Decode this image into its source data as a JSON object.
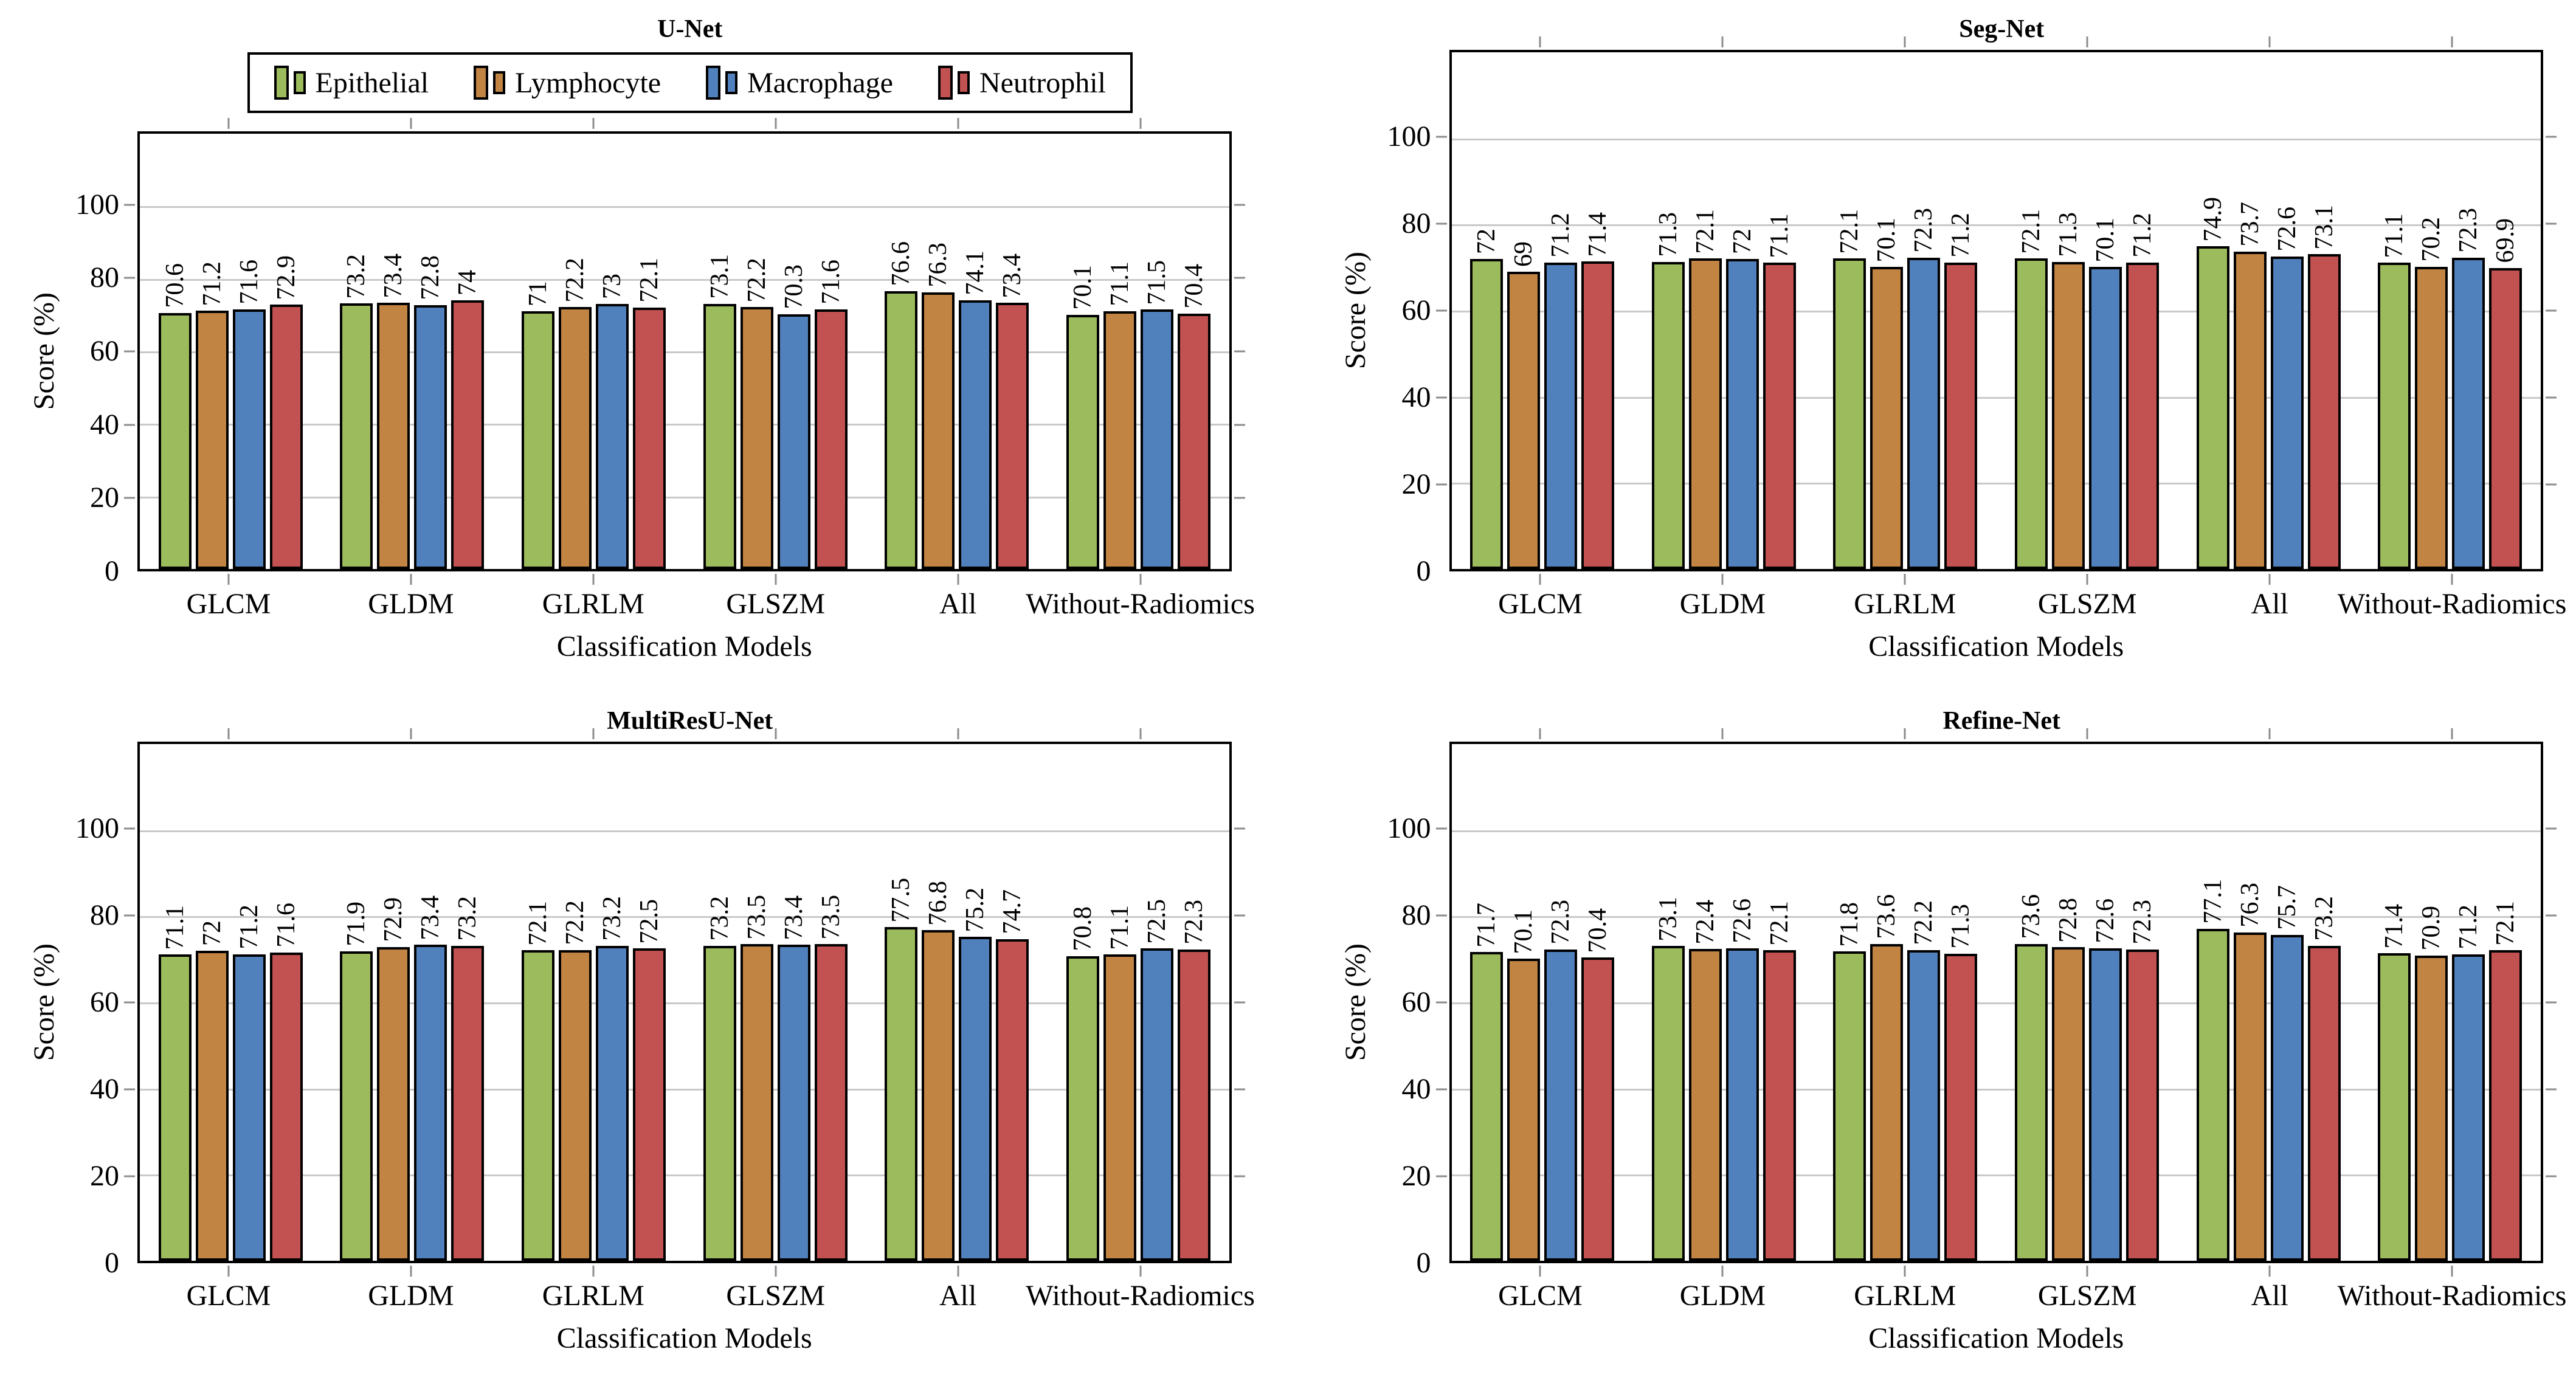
{
  "figure": {
    "layout": "2x2-grid",
    "grid_color": "#c9c9c9",
    "tick_color": "#8c8c8c",
    "bar_border_color": "#000000",
    "legend": {
      "entries": [
        "Epithelial",
        "Lymphocyte",
        "Macrophage",
        "Neutrophil"
      ],
      "colors": [
        "#9cbb5c",
        "#c28442",
        "#5181bc",
        "#c25152"
      ],
      "position": "above-first-panel"
    }
  },
  "chart_data": [
    {
      "type": "bar",
      "title": "U-Net",
      "xlabel": "Classification Models",
      "ylabel": "Score (%)",
      "ylim": [
        0,
        120
      ],
      "yticks": [
        0,
        20,
        40,
        60,
        80,
        100
      ],
      "grid": "horizontal",
      "legend_visible": true,
      "categories": [
        "GLCM",
        "GLDM",
        "GLRLM",
        "GLSZM",
        "All",
        "Without-Radiomics"
      ],
      "series": [
        {
          "name": "Epithelial",
          "color": "#9cbb5c",
          "values": [
            70.6,
            73.2,
            71,
            73.1,
            76.6,
            70.1
          ]
        },
        {
          "name": "Lymphocyte",
          "color": "#c28442",
          "values": [
            71.2,
            73.4,
            72.2,
            72.2,
            76.3,
            71.1
          ]
        },
        {
          "name": "Macrophage",
          "color": "#5181bc",
          "values": [
            71.6,
            72.8,
            73,
            70.3,
            74.1,
            71.5
          ]
        },
        {
          "name": "Neutrophil",
          "color": "#c25152",
          "values": [
            72.9,
            74,
            72.1,
            71.6,
            73.4,
            70.4
          ]
        }
      ]
    },
    {
      "type": "bar",
      "title": "Seg-Net",
      "xlabel": "Classification Models",
      "ylabel": "Score (%)",
      "ylim": [
        0,
        120
      ],
      "yticks": [
        0,
        20,
        40,
        60,
        80,
        100
      ],
      "grid": "horizontal",
      "legend_visible": false,
      "categories": [
        "GLCM",
        "GLDM",
        "GLRLM",
        "GLSZM",
        "All",
        "Without-Radiomics"
      ],
      "series": [
        {
          "name": "Epithelial",
          "color": "#9cbb5c",
          "values": [
            72,
            71.3,
            72.1,
            72.1,
            74.9,
            71.1
          ]
        },
        {
          "name": "Lymphocyte",
          "color": "#c28442",
          "values": [
            69,
            72.1,
            70.1,
            71.3,
            73.7,
            70.2
          ]
        },
        {
          "name": "Macrophage",
          "color": "#5181bc",
          "values": [
            71.2,
            72,
            72.3,
            70.1,
            72.6,
            72.3
          ]
        },
        {
          "name": "Neutrophil",
          "color": "#c25152",
          "values": [
            71.4,
            71.1,
            71.2,
            71.2,
            73.1,
            69.9
          ]
        }
      ]
    },
    {
      "type": "bar",
      "title": "MultiResU-Net",
      "xlabel": "Classification Models",
      "ylabel": "Score (%)",
      "ylim": [
        0,
        120
      ],
      "yticks": [
        0,
        20,
        40,
        60,
        80,
        100
      ],
      "grid": "horizontal",
      "legend_visible": false,
      "categories": [
        "GLCM",
        "GLDM",
        "GLRLM",
        "GLSZM",
        "All",
        "Without-Radiomics"
      ],
      "series": [
        {
          "name": "Epithelial",
          "color": "#9cbb5c",
          "values": [
            71.1,
            71.9,
            72.1,
            73.2,
            77.5,
            70.8
          ]
        },
        {
          "name": "Lymphocyte",
          "color": "#c28442",
          "values": [
            72,
            72.9,
            72.2,
            73.5,
            76.8,
            71.1
          ]
        },
        {
          "name": "Macrophage",
          "color": "#5181bc",
          "values": [
            71.2,
            73.4,
            73.2,
            73.4,
            75.2,
            72.5
          ]
        },
        {
          "name": "Neutrophil",
          "color": "#c25152",
          "values": [
            71.6,
            73.2,
            72.5,
            73.5,
            74.7,
            72.3
          ]
        }
      ]
    },
    {
      "type": "bar",
      "title": "Refine-Net",
      "xlabel": "Classification Models",
      "ylabel": "Score (%)",
      "ylim": [
        0,
        120
      ],
      "yticks": [
        0,
        20,
        40,
        60,
        80,
        100
      ],
      "grid": "horizontal",
      "legend_visible": false,
      "categories": [
        "GLCM",
        "GLDM",
        "GLRLM",
        "GLSZM",
        "All",
        "Without-Radiomics"
      ],
      "series": [
        {
          "name": "Epithelial",
          "color": "#9cbb5c",
          "values": [
            71.7,
            73.1,
            71.8,
            73.6,
            77.1,
            71.4
          ]
        },
        {
          "name": "Lymphocyte",
          "color": "#c28442",
          "values": [
            70.1,
            72.4,
            73.6,
            72.8,
            76.3,
            70.9
          ]
        },
        {
          "name": "Macrophage",
          "color": "#5181bc",
          "values": [
            72.3,
            72.6,
            72.2,
            72.6,
            75.7,
            71.2
          ]
        },
        {
          "name": "Neutrophil",
          "color": "#c25152",
          "values": [
            70.4,
            72.1,
            71.3,
            72.3,
            73.2,
            72.1
          ]
        }
      ]
    }
  ]
}
